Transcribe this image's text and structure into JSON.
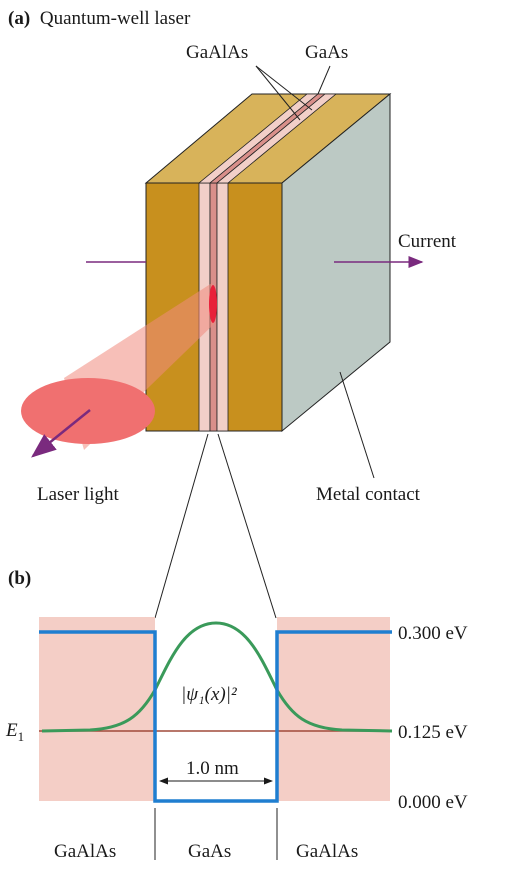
{
  "panel_a": {
    "letter": "(a)",
    "title": "Quantum-well laser",
    "label_gaalas": "GaAlAs",
    "label_gaas": "GaAs",
    "label_current": "Current",
    "label_laser_light": "Laser light",
    "label_metal_contact": "Metal contact"
  },
  "panel_b": {
    "letter": "(b)",
    "energy_levels": [
      "0.300 eV",
      "0.125 eV",
      "0.000 eV"
    ],
    "e1_symbol": "E",
    "e1_subscript": "1",
    "wavefunction_label": "|ψ₁(x)|²",
    "width_label": "1.0 nm",
    "region_labels": [
      "GaAlAs",
      "GaAs",
      "GaAlAs"
    ]
  },
  "colors": {
    "gold": "#c8901e",
    "gold_top": "#d8b35a",
    "metal": "#bcc9c4",
    "layer_light": "#f2cfc8",
    "layer_dark": "#d98f8a",
    "beam": "#f08a7e",
    "laser_dot": "#e8203a",
    "arrow": "#7a2a7e",
    "well": "#1f7ed0",
    "wave": "#3a9a5a",
    "level": "#a04a3a",
    "band": "#f4cec6"
  }
}
